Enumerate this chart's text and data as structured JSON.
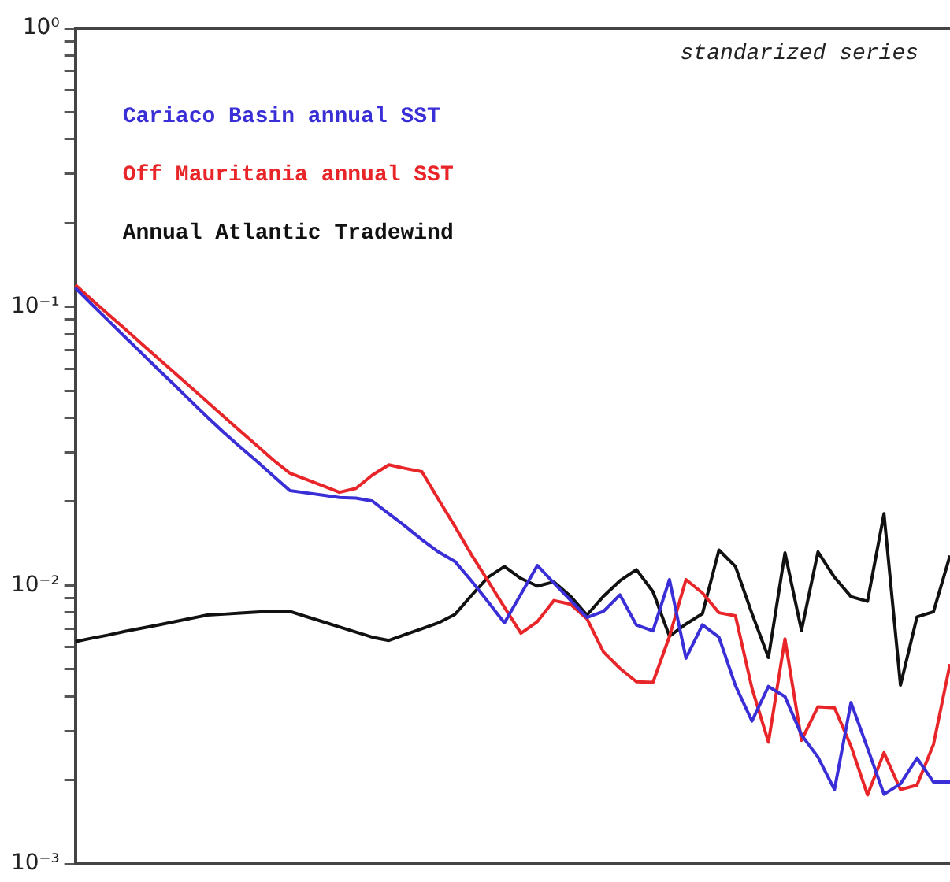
{
  "chart_data": {
    "type": "line",
    "annotations": [
      "standarized series"
    ],
    "categories": [
      null,
      null,
      null,
      null,
      null,
      null,
      null,
      null,
      null,
      null,
      null,
      null,
      null,
      null,
      null,
      null,
      null,
      null,
      null,
      null,
      null,
      null,
      null,
      null,
      null,
      null,
      null,
      null,
      null,
      null,
      null,
      null,
      null,
      null,
      null,
      null,
      null,
      null,
      null,
      null,
      null,
      null,
      null,
      null,
      null,
      null,
      null,
      null,
      null,
      null,
      null,
      null,
      null,
      null
    ],
    "series": [
      {
        "name": "Cariaco Basin annual SST",
        "color": "#3a2fd6",
        "values": [
          0.117,
          0.102,
          0.0893,
          0.0781,
          0.0684,
          0.0598,
          0.0525,
          0.0459,
          0.0402,
          0.0354,
          0.0314,
          0.0279,
          0.0247,
          0.0219,
          0.0215,
          0.0211,
          0.0207,
          0.0206,
          0.0201,
          0.0181,
          0.0163,
          0.0146,
          0.0132,
          0.0122,
          0.0104,
          0.00875,
          0.00734,
          0.00931,
          0.0118,
          0.0102,
          0.00886,
          0.00767,
          0.00807,
          0.00925,
          0.00721,
          0.00687,
          0.0105,
          0.00548,
          0.00723,
          0.00652,
          0.00437,
          0.00326,
          0.00434,
          0.00399,
          0.00291,
          0.00242,
          0.00185,
          0.0038,
          0.00261,
          0.00178,
          0.00194,
          0.0024,
          0.00197,
          0.00197
        ]
      },
      {
        "name": "Off Mauritania annual SST",
        "color": "#e8262a",
        "values": [
          0.12,
          0.106,
          0.094,
          0.0834,
          0.0739,
          0.0655,
          0.0581,
          0.0515,
          0.0456,
          0.0404,
          0.0358,
          0.0318,
          0.0282,
          0.0253,
          0.024,
          0.0228,
          0.0216,
          0.0223,
          0.0249,
          0.0271,
          0.0263,
          0.0256,
          0.0204,
          0.0163,
          0.0129,
          0.0104,
          0.00835,
          0.00674,
          0.00742,
          0.00883,
          0.00857,
          0.0076,
          0.00577,
          0.00504,
          0.00451,
          0.00449,
          0.00656,
          0.0105,
          0.0094,
          0.00798,
          0.00778,
          0.00428,
          0.00274,
          0.00643,
          0.00278,
          0.00367,
          0.00364,
          0.00265,
          0.00177,
          0.00251,
          0.00185,
          0.00192,
          0.00269,
          0.00522
        ]
      },
      {
        "name": "Annual Atlantic Tradewind",
        "color": "#111111",
        "values": [
          0.00629,
          0.00647,
          0.00664,
          0.00684,
          0.00702,
          0.00721,
          0.00741,
          0.00762,
          0.00783,
          0.00789,
          0.00796,
          0.00802,
          0.00809,
          0.00807,
          0.00773,
          0.00741,
          0.0071,
          0.0068,
          0.00652,
          0.00635,
          0.00667,
          0.007,
          0.00734,
          0.00787,
          0.0092,
          0.0107,
          0.0117,
          0.0106,
          0.00995,
          0.0103,
          0.00916,
          0.00783,
          0.00914,
          0.0104,
          0.0114,
          0.00951,
          0.00658,
          0.00727,
          0.00792,
          0.0134,
          0.0117,
          0.00793,
          0.00551,
          0.0131,
          0.0069,
          0.0132,
          0.0107,
          0.00912,
          0.00877,
          0.0181,
          0.00439,
          0.00771,
          0.00805,
          0.0128
        ]
      }
    ],
    "log": "y",
    "ylim": [
      0.001,
      1
    ],
    "yticks": [
      {
        "value": 1,
        "label": "10⁰"
      },
      {
        "value": 0.9,
        "label": null
      },
      {
        "value": 0.8,
        "label": null
      },
      {
        "value": 0.7,
        "label": null
      },
      {
        "value": 0.6,
        "label": null
      },
      {
        "value": 0.5,
        "label": null
      },
      {
        "value": 0.4,
        "label": null
      },
      {
        "value": 0.3,
        "label": null
      },
      {
        "value": 0.2,
        "label": null
      },
      {
        "value": 0.1,
        "label": "10⁻¹"
      },
      {
        "value": 0.09,
        "label": null
      },
      {
        "value": 0.08,
        "label": null
      },
      {
        "value": 0.07,
        "label": null
      },
      {
        "value": 0.06,
        "label": null
      },
      {
        "value": 0.05,
        "label": null
      },
      {
        "value": 0.04,
        "label": null
      },
      {
        "value": 0.03,
        "label": null
      },
      {
        "value": 0.02,
        "label": null
      },
      {
        "value": 0.01,
        "label": "10⁻²"
      },
      {
        "value": 0.009,
        "label": null
      },
      {
        "value": 0.008,
        "label": null
      },
      {
        "value": 0.007,
        "label": null
      },
      {
        "value": 0.006,
        "label": null
      },
      {
        "value": 0.005,
        "label": null
      },
      {
        "value": 0.004,
        "label": null
      },
      {
        "value": 0.003,
        "label": null
      },
      {
        "value": 0.002,
        "label": null
      },
      {
        "value": 0.001,
        "label": "10⁻³"
      }
    ],
    "tick_labels": "y",
    "legend": "top left",
    "marker": "none",
    "line_style": "solid"
  }
}
